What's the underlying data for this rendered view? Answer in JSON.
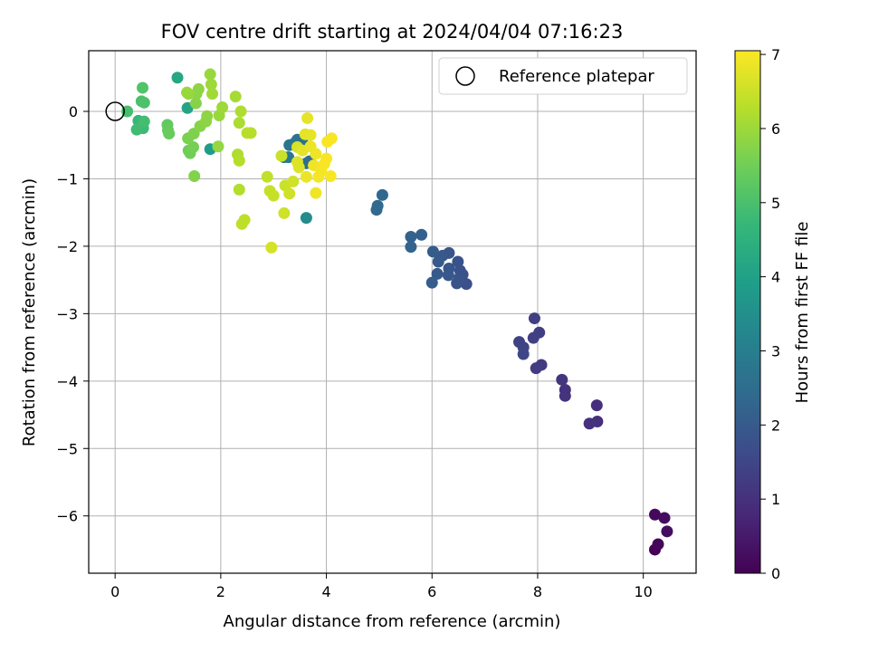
{
  "chart_data": {
    "type": "scatter",
    "title": "FOV centre drift starting at 2024/04/04 07:16:23",
    "xlabel": "Angular distance from reference (arcmin)",
    "ylabel": "Rotation from reference (arcmin)",
    "xlim": [
      -0.5,
      11.0
    ],
    "ylim": [
      -6.85,
      0.9
    ],
    "xticks": [
      0,
      2,
      4,
      6,
      8,
      10
    ],
    "yticks": [
      0,
      -1,
      -2,
      -3,
      -4,
      -5,
      -6
    ],
    "grid": true,
    "legend": {
      "placement": "top-right",
      "entries": [
        "Reference platepar"
      ]
    },
    "reference_point": {
      "x": 0,
      "y": 0,
      "label": "Reference platepar"
    },
    "colorbar": {
      "label": "Hours from first FF file",
      "range": [
        0,
        7.05
      ],
      "ticks": [
        0,
        1,
        2,
        3,
        4,
        5,
        6,
        7
      ],
      "colormap": "viridis"
    },
    "colormap_stops": [
      "#440154",
      "#482878",
      "#3e4989",
      "#31688e",
      "#26828e",
      "#1f9e89",
      "#35b779",
      "#6ece58",
      "#b5de2b",
      "#fde725"
    ],
    "series": [
      {
        "points": [
          [
            10.22,
            -6.5,
            0.05
          ],
          [
            10.28,
            -6.42,
            0.1
          ],
          [
            10.22,
            -5.98,
            0.15
          ],
          [
            10.4,
            -6.03,
            0.2
          ],
          [
            10.45,
            -6.23,
            0.25
          ],
          [
            9.12,
            -4.36,
            0.95
          ],
          [
            9.13,
            -4.6,
            0.95
          ],
          [
            8.98,
            -4.63,
            1.0
          ],
          [
            8.52,
            -4.13,
            1.05
          ],
          [
            8.52,
            -4.22,
            1.05
          ],
          [
            8.46,
            -3.98,
            1.1
          ],
          [
            8.07,
            -3.76,
            1.2
          ],
          [
            7.97,
            -3.81,
            1.25
          ],
          [
            7.94,
            -3.07,
            1.3
          ],
          [
            8.03,
            -3.28,
            1.3
          ],
          [
            7.92,
            -3.36,
            1.35
          ],
          [
            7.65,
            -3.42,
            1.4
          ],
          [
            7.73,
            -3.5,
            1.45
          ],
          [
            7.73,
            -3.6,
            1.5
          ],
          [
            6.58,
            -2.42,
            1.75
          ],
          [
            6.65,
            -2.56,
            1.75
          ],
          [
            6.49,
            -2.23,
            1.8
          ],
          [
            6.53,
            -2.36,
            1.8
          ],
          [
            6.52,
            -2.47,
            1.85
          ],
          [
            6.47,
            -2.55,
            1.85
          ],
          [
            6.32,
            -2.1,
            1.9
          ],
          [
            6.32,
            -2.33,
            1.9
          ],
          [
            6.31,
            -2.43,
            1.95
          ],
          [
            6.2,
            -2.14,
            1.95
          ],
          [
            6.12,
            -2.23,
            2.0
          ],
          [
            6.1,
            -2.41,
            2.0
          ],
          [
            6.02,
            -2.08,
            2.05
          ],
          [
            6.0,
            -2.54,
            2.1
          ],
          [
            5.8,
            -1.83,
            2.15
          ],
          [
            5.6,
            -1.86,
            2.2
          ],
          [
            5.6,
            -2.01,
            2.25
          ],
          [
            5.06,
            -1.24,
            2.35
          ],
          [
            4.97,
            -1.4,
            2.4
          ],
          [
            4.95,
            -1.46,
            2.45
          ],
          [
            3.68,
            -0.74,
            2.5
          ],
          [
            3.62,
            -0.77,
            2.55
          ],
          [
            3.55,
            -0.47,
            2.6
          ],
          [
            3.45,
            -0.42,
            2.65
          ],
          [
            3.4,
            -0.47,
            2.7
          ],
          [
            3.3,
            -0.5,
            2.75
          ],
          [
            3.2,
            -0.68,
            2.8
          ],
          [
            3.28,
            -0.68,
            2.85
          ],
          [
            3.62,
            -1.58,
            3.4
          ],
          [
            1.8,
            -0.56,
            3.9
          ],
          [
            1.37,
            0.05,
            4.1
          ],
          [
            1.18,
            0.5,
            4.2
          ],
          [
            0.44,
            -0.14,
            4.7
          ],
          [
            0.5,
            -0.2,
            4.75
          ],
          [
            0.53,
            -0.25,
            4.8
          ],
          [
            0.41,
            -0.27,
            4.85
          ],
          [
            0.55,
            -0.15,
            4.9
          ],
          [
            0.23,
            0.0,
            4.95
          ],
          [
            0.5,
            0.15,
            5.0
          ],
          [
            0.55,
            0.13,
            5.05
          ],
          [
            0.52,
            0.35,
            5.1
          ],
          [
            0.99,
            -0.2,
            5.3
          ],
          [
            1.0,
            -0.28,
            5.35
          ],
          [
            1.02,
            -0.33,
            5.4
          ],
          [
            1.39,
            -0.58,
            5.45
          ],
          [
            1.42,
            -0.62,
            5.5
          ],
          [
            1.48,
            -0.53,
            5.55
          ],
          [
            1.38,
            -0.4,
            5.6
          ],
          [
            1.49,
            -0.33,
            5.65
          ],
          [
            1.5,
            -0.96,
            5.7
          ],
          [
            1.61,
            -0.22,
            5.75
          ],
          [
            1.72,
            -0.15,
            5.8
          ],
          [
            1.74,
            -0.07,
            5.85
          ],
          [
            1.95,
            -0.52,
            5.9
          ],
          [
            1.97,
            -0.06,
            5.95
          ],
          [
            2.03,
            0.06,
            6.0
          ],
          [
            1.53,
            0.12,
            5.75
          ],
          [
            1.54,
            0.26,
            5.8
          ],
          [
            1.58,
            0.33,
            5.85
          ],
          [
            1.39,
            0.26,
            5.9
          ],
          [
            1.36,
            0.28,
            5.95
          ],
          [
            1.8,
            0.55,
            5.95
          ],
          [
            1.82,
            0.4,
            6.0
          ],
          [
            1.84,
            0.26,
            6.05
          ],
          [
            2.28,
            0.22,
            6.1
          ],
          [
            2.35,
            -0.17,
            6.15
          ],
          [
            2.38,
            0.0,
            6.2
          ],
          [
            2.32,
            -0.64,
            6.2
          ],
          [
            2.35,
            -0.73,
            6.25
          ],
          [
            2.35,
            -1.16,
            6.25
          ],
          [
            2.5,
            -0.32,
            6.3
          ],
          [
            2.57,
            -0.32,
            6.3
          ],
          [
            2.4,
            -1.67,
            6.35
          ],
          [
            2.45,
            -1.61,
            6.35
          ],
          [
            2.88,
            -0.97,
            6.4
          ],
          [
            2.93,
            -1.18,
            6.45
          ],
          [
            3.0,
            -1.25,
            6.45
          ],
          [
            3.15,
            -0.66,
            6.5
          ],
          [
            3.22,
            -1.1,
            6.5
          ],
          [
            3.3,
            -1.22,
            6.55
          ],
          [
            3.37,
            -1.04,
            6.55
          ],
          [
            3.2,
            -1.51,
            6.55
          ],
          [
            2.96,
            -2.02,
            6.6
          ],
          [
            3.45,
            -0.53,
            6.65
          ],
          [
            3.45,
            -0.75,
            6.7
          ],
          [
            3.48,
            -0.83,
            6.7
          ],
          [
            3.55,
            -0.58,
            6.75
          ],
          [
            3.6,
            -0.34,
            6.75
          ],
          [
            3.64,
            -0.1,
            6.8
          ],
          [
            3.7,
            -0.35,
            6.8
          ],
          [
            3.7,
            -0.52,
            6.85
          ],
          [
            3.62,
            -0.97,
            6.85
          ],
          [
            3.76,
            -0.8,
            6.9
          ],
          [
            3.8,
            -0.63,
            6.9
          ],
          [
            3.8,
            -1.21,
            6.9
          ],
          [
            3.85,
            -0.97,
            6.95
          ],
          [
            3.9,
            -0.88,
            6.95
          ],
          [
            3.96,
            -0.78,
            7.0
          ],
          [
            4.0,
            -0.7,
            7.0
          ],
          [
            4.02,
            -0.45,
            7.0
          ],
          [
            4.1,
            -0.4,
            7.0
          ],
          [
            4.08,
            -0.96,
            7.0
          ]
        ]
      }
    ]
  }
}
